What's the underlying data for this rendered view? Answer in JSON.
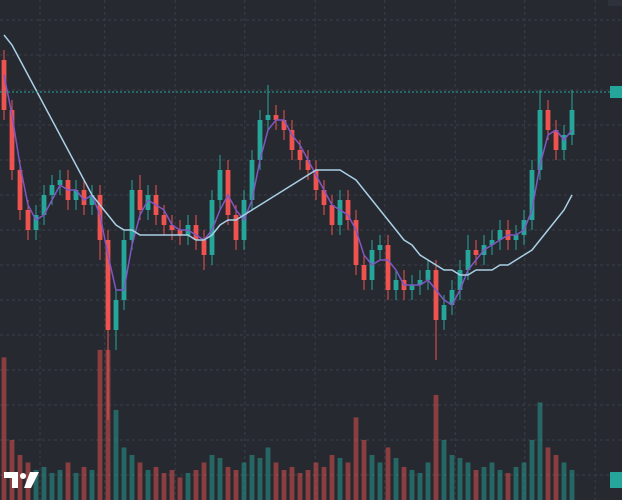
{
  "chart_data": {
    "type": "candlestick",
    "background": "#262930",
    "grid_color": "#3a3e48",
    "up_color": "#26a69a",
    "down_color": "#ef5350",
    "ylim": [
      0,
      100
    ],
    "xlim": [
      -0.5,
      77.25
    ],
    "y2lim": [
      0,
      333
    ],
    "yticks": [
      96,
      89,
      82,
      75,
      68,
      61,
      54,
      47,
      40,
      33,
      26,
      19,
      12,
      5
    ],
    "xticks": [
      4.5,
      12.6,
      21.4,
      30.1,
      38.9,
      47.6,
      56.4,
      65.1,
      73.9
    ],
    "grid": true,
    "price_line": 81.6,
    "open": [
      88,
      78,
      66,
      58,
      54,
      57,
      61,
      63,
      64,
      60,
      62,
      59,
      61,
      52,
      34,
      40,
      52,
      62,
      58,
      61,
      57,
      55,
      54,
      53,
      55,
      52,
      49,
      60,
      66,
      57,
      52,
      60,
      68,
      76,
      77,
      76,
      74,
      70,
      68,
      66,
      62,
      59,
      55,
      60,
      56,
      47,
      44,
      50,
      51,
      42,
      44,
      42,
      43,
      44,
      46,
      36,
      39,
      42,
      46,
      50,
      49,
      51,
      52,
      54,
      52,
      53,
      56,
      66,
      78,
      74,
      70,
      73
    ],
    "high": [
      90,
      80,
      68,
      60,
      59,
      63,
      65,
      66,
      66,
      64,
      64,
      63,
      63,
      54,
      42,
      54,
      64,
      65,
      63,
      63,
      59,
      57,
      56,
      57,
      57,
      54,
      62,
      69,
      68,
      59,
      62,
      70,
      78,
      83,
      79,
      78,
      76,
      72,
      70,
      68,
      64,
      61,
      62,
      62,
      58,
      49,
      52,
      53,
      53,
      46,
      46,
      45,
      46,
      48,
      48,
      41,
      44,
      48,
      53,
      52,
      53,
      54,
      56,
      56,
      55,
      58,
      68,
      82,
      80,
      76,
      75,
      82
    ],
    "low": [
      76,
      64,
      56,
      52,
      52,
      55,
      59,
      61,
      58,
      58,
      57,
      57,
      48,
      16,
      30,
      38,
      50,
      56,
      56,
      55,
      53,
      52,
      51,
      51,
      50,
      46,
      47,
      58,
      55,
      50,
      50,
      58,
      66,
      74,
      74,
      72,
      68,
      66,
      64,
      60,
      57,
      53,
      53,
      54,
      45,
      42,
      42,
      48,
      40,
      40,
      40,
      40,
      41,
      42,
      28,
      34,
      37,
      40,
      44,
      47,
      47,
      49,
      50,
      50,
      50,
      51,
      54,
      64,
      72,
      68,
      68,
      71
    ],
    "close": [
      78,
      66,
      58,
      54,
      57,
      61,
      63,
      64,
      60,
      62,
      59,
      61,
      52,
      34,
      40,
      52,
      62,
      58,
      61,
      57,
      55,
      54,
      53,
      55,
      52,
      49,
      60,
      66,
      57,
      52,
      60,
      68,
      76,
      77,
      76,
      74,
      70,
      68,
      66,
      62,
      59,
      55,
      60,
      56,
      47,
      44,
      50,
      51,
      42,
      44,
      42,
      43,
      44,
      46,
      36,
      39,
      42,
      46,
      50,
      49,
      51,
      52,
      54,
      52,
      53,
      56,
      66,
      78,
      74,
      70,
      73,
      78
    ],
    "volume": [
      95,
      40,
      30,
      25,
      20,
      22,
      18,
      20,
      25,
      18,
      22,
      20,
      100,
      100,
      60,
      35,
      30,
      25,
      20,
      22,
      18,
      20,
      15,
      18,
      20,
      25,
      30,
      28,
      22,
      20,
      25,
      30,
      28,
      35,
      25,
      20,
      22,
      18,
      20,
      25,
      22,
      30,
      28,
      25,
      55,
      40,
      30,
      25,
      35,
      28,
      22,
      20,
      18,
      25,
      70,
      40,
      30,
      28,
      25,
      20,
      22,
      25,
      20,
      18,
      22,
      25,
      40,
      65,
      35,
      30,
      25,
      20
    ],
    "series": [
      {
        "color": "#7e57c2",
        "values": [
          85,
          77,
          67,
          59,
          56,
          57,
          60,
          63,
          62,
          62,
          60,
          61,
          57,
          49,
          42,
          42,
          51,
          57,
          60,
          59,
          58,
          55,
          54,
          54,
          53,
          52,
          54,
          58,
          61,
          58,
          56,
          60,
          68,
          74,
          76,
          76,
          73,
          71,
          68,
          65,
          62,
          59,
          58,
          57,
          54,
          49,
          47,
          48,
          48,
          46,
          43,
          43,
          43,
          44,
          42,
          40,
          39,
          42,
          46,
          48,
          50,
          51,
          52,
          53,
          53,
          54,
          58,
          67,
          73,
          74,
          72,
          74
        ]
      },
      {
        "color": "#a9cfe6",
        "values": [
          93,
          91,
          88,
          85,
          82,
          79,
          76,
          73,
          70,
          67,
          64,
          61,
          59,
          57,
          55,
          54,
          54,
          53,
          53,
          53,
          53,
          53,
          53,
          53,
          52,
          52,
          53,
          55,
          56,
          56,
          57,
          58,
          59,
          60,
          61,
          62,
          63,
          64,
          65,
          66,
          66,
          66,
          66,
          65,
          64,
          62,
          60,
          58,
          56,
          54,
          52,
          51,
          49,
          48,
          47,
          46,
          46,
          45,
          45,
          46,
          46,
          46,
          47,
          47,
          48,
          49,
          50,
          52,
          54,
          56,
          58,
          61
        ]
      }
    ]
  }
}
